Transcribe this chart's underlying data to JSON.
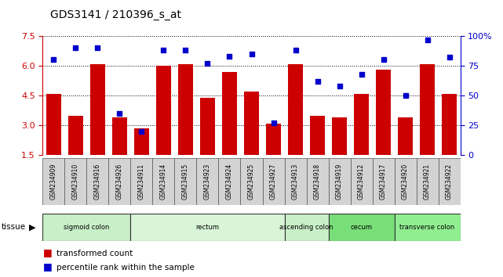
{
  "title": "GDS3141 / 210396_s_at",
  "samples": [
    "GSM234909",
    "GSM234910",
    "GSM234916",
    "GSM234926",
    "GSM234911",
    "GSM234914",
    "GSM234915",
    "GSM234923",
    "GSM234924",
    "GSM234925",
    "GSM234927",
    "GSM234913",
    "GSM234918",
    "GSM234919",
    "GSM234912",
    "GSM234917",
    "GSM234920",
    "GSM234921",
    "GSM234922"
  ],
  "bar_values": [
    4.6,
    3.5,
    6.1,
    3.4,
    2.85,
    6.0,
    6.1,
    4.4,
    5.7,
    4.7,
    3.1,
    6.1,
    3.5,
    3.4,
    4.6,
    5.8,
    3.4,
    6.1,
    4.6
  ],
  "percentile_values": [
    80,
    90,
    90,
    35,
    20,
    88,
    88,
    77,
    83,
    85,
    27,
    88,
    62,
    58,
    68,
    80,
    50,
    97,
    82
  ],
  "ylim_left": [
    1.5,
    7.5
  ],
  "ylim_right": [
    0,
    100
  ],
  "yticks_left": [
    1.5,
    3.0,
    4.5,
    6.0,
    7.5
  ],
  "yticks_right": [
    0,
    25,
    50,
    75,
    100
  ],
  "ytick_labels_right": [
    "0",
    "25",
    "50",
    "75",
    "100%"
  ],
  "tissue_groups": [
    {
      "label": "sigmoid colon",
      "start": 0,
      "end": 4,
      "color": "#c8f0c8"
    },
    {
      "label": "rectum",
      "start": 4,
      "end": 11,
      "color": "#d8f5d8"
    },
    {
      "label": "ascending colon",
      "start": 11,
      "end": 13,
      "color": "#c8f0c8"
    },
    {
      "label": "cecum",
      "start": 13,
      "end": 16,
      "color": "#78de78"
    },
    {
      "label": "transverse colon",
      "start": 16,
      "end": 19,
      "color": "#90ee90"
    }
  ],
  "bar_color": "#cc0000",
  "dot_color": "#0000cc",
  "bar_bottom": 1.5,
  "left_axis_color": "#cc0000",
  "right_axis_color": "#0000cc",
  "xticklabel_bg": "#d0d0d0"
}
